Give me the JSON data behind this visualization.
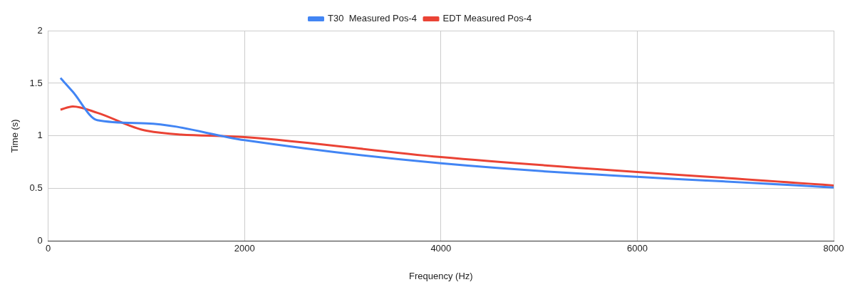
{
  "chart_data": {
    "type": "line",
    "xlabel": "Frequency (Hz)",
    "ylabel": "Time (s)",
    "x": [
      125,
      250,
      500,
      1000,
      2000,
      4000,
      8000
    ],
    "series": [
      {
        "name": "T30  Measured Pos-4",
        "color": "#4285f4",
        "values": [
          1.55,
          1.42,
          1.15,
          1.12,
          0.96,
          0.74,
          0.51
        ]
      },
      {
        "name": "EDT Measured Pos-4",
        "color": "#ea4335",
        "values": [
          1.25,
          1.28,
          1.22,
          1.05,
          0.99,
          0.8,
          0.53
        ]
      }
    ],
    "xlim": [
      0,
      8000
    ],
    "xticks": [
      0,
      2000,
      4000,
      6000,
      8000
    ],
    "ylim": [
      0,
      2
    ],
    "yticks": [
      0,
      0.5,
      1,
      1.5,
      2
    ],
    "grid": true,
    "legend": "top",
    "marker": "none"
  }
}
